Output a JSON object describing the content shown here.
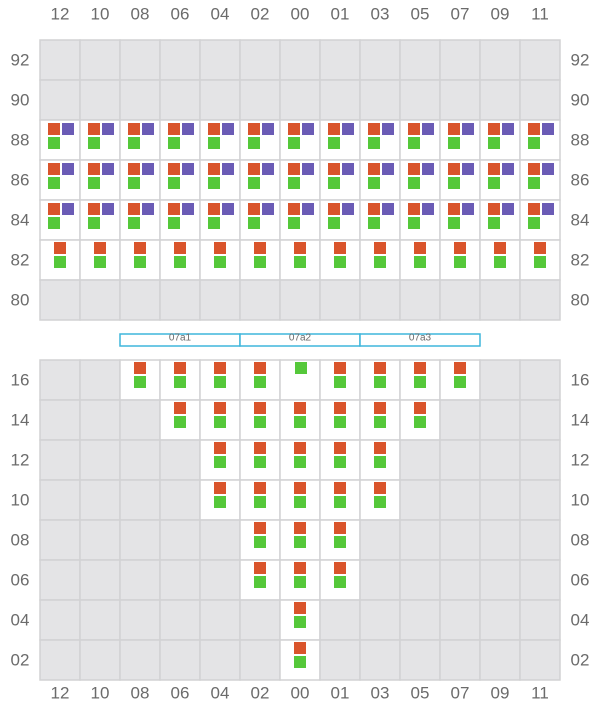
{
  "columns": [
    "12",
    "10",
    "08",
    "06",
    "04",
    "02",
    "00",
    "01",
    "03",
    "05",
    "07",
    "09",
    "11"
  ],
  "upper_rows": [
    "92",
    "90",
    "88",
    "86",
    "84",
    "82",
    "80"
  ],
  "zones": [
    "07a1",
    "07a2",
    "07a3"
  ],
  "lower_rows": [
    "16",
    "14",
    "12",
    "10",
    "08",
    "06",
    "04",
    "02"
  ]
}
